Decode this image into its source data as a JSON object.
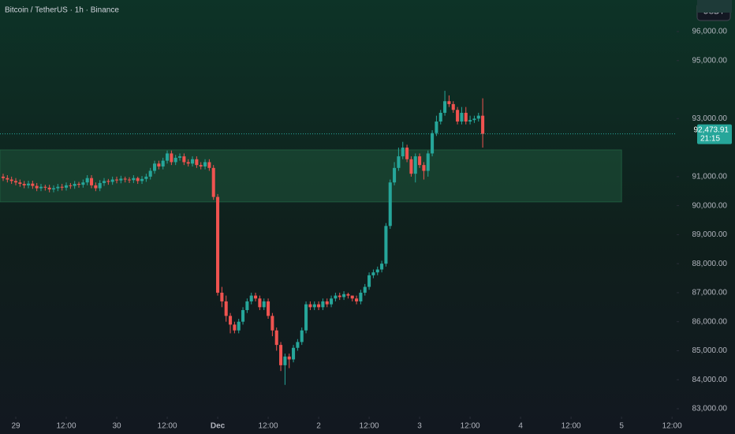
{
  "chart_data": {
    "type": "candlestick",
    "title": "Bitcoin / TetherUS · 1h · Binance",
    "currency": "USDT",
    "up_color": "#26a69a",
    "down_color": "#ef5350",
    "xlim": [
      -3.75,
      157.1
    ],
    "xticks": [
      {
        "value": 0,
        "label": "29"
      },
      {
        "value": 12,
        "label": "12:00"
      },
      {
        "value": 24,
        "label": "30"
      },
      {
        "value": 36,
        "label": "12:00"
      },
      {
        "value": 48,
        "label": "Dec"
      },
      {
        "value": 60,
        "label": "12:00"
      },
      {
        "value": 72,
        "label": "2"
      },
      {
        "value": 84,
        "label": "12:00"
      },
      {
        "value": 96,
        "label": "3"
      },
      {
        "value": 108,
        "label": "12:00"
      },
      {
        "value": 120,
        "label": "4"
      },
      {
        "value": 132,
        "label": "12:00"
      },
      {
        "value": 144,
        "label": "5"
      },
      {
        "value": 156,
        "label": "12:00"
      }
    ],
    "ylim": [
      82728,
      97088
    ],
    "yticks": [
      {
        "value": 83000,
        "label": "83,000.00"
      },
      {
        "value": 84000,
        "label": "84,000.00"
      },
      {
        "value": 85000,
        "label": "85,000.00"
      },
      {
        "value": 86000,
        "label": "86,000.00"
      },
      {
        "value": 87000,
        "label": "87,000.00"
      },
      {
        "value": 88000,
        "label": "88,000.00"
      },
      {
        "value": 89000,
        "label": "89,000.00"
      },
      {
        "value": 90000,
        "label": "90,000.00"
      },
      {
        "value": 91000,
        "label": "91,000.00"
      },
      {
        "value": 93000,
        "label": "93,000.00"
      },
      {
        "value": 95000,
        "label": "95,000.00"
      },
      {
        "value": 96000,
        "label": "96,000.00"
      }
    ],
    "zone": {
      "x": [
        -3.75,
        144
      ],
      "y": [
        90130,
        91920
      ],
      "color": "#1f5a3e"
    },
    "high": [
      91100,
      91050,
      91000,
      90950,
      90900,
      90850,
      90860,
      90860,
      90780,
      90750,
      90720,
      90720,
      90700,
      90750,
      90750,
      90800,
      90780,
      90850,
      90820,
      90900,
      91050,
      91050,
      90800,
      90880,
      90950,
      90920,
      91000,
      91000,
      91030,
      91000,
      90980,
      91050,
      91000,
      91020,
      91100,
      91300,
      91550,
      91550,
      91650,
      91900,
      91900,
      91750,
      91800,
      91800,
      91600,
      91700,
      91700,
      91500,
      91600,
      91600,
      91400,
      90400,
      87200,
      86900,
      86300,
      86000,
      86100,
      86500,
      86800,
      87000,
      87000,
      86900,
      86800,
      86800,
      86300,
      85800,
      85300,
      84900,
      84900,
      85200,
      85400,
      85800,
      86700,
      86700,
      86700,
      86700,
      86800,
      86800,
      86900,
      87000,
      87000,
      87050,
      87000,
      86900,
      86900,
      87100,
      87300,
      87700,
      87800,
      87900,
      88100,
      89400,
      90900,
      91500,
      92000,
      92200,
      92100,
      91700,
      91800,
      91800,
      91500,
      91900,
      92600,
      93100,
      93300,
      93958.58,
      93800,
      93600,
      93400,
      93400,
      93400,
      93100,
      93100,
      93200,
      93700
    ],
    "low": [
      90850,
      90800,
      90750,
      90700,
      90650,
      90600,
      90600,
      90580,
      90500,
      90500,
      90520,
      90460,
      90460,
      90500,
      90520,
      90520,
      90580,
      90580,
      90620,
      90620,
      90700,
      90600,
      90500,
      90500,
      90680,
      90720,
      90720,
      90770,
      90770,
      90800,
      90780,
      90780,
      90750,
      90750,
      90820,
      90900,
      91100,
      91250,
      91250,
      91450,
      91400,
      91400,
      91550,
      91400,
      91350,
      91350,
      91300,
      91250,
      91250,
      91200,
      90200,
      86900,
      86500,
      86000,
      85600,
      85600,
      85600,
      85900,
      86300,
      86600,
      86700,
      86400,
      86400,
      86100,
      85500,
      85000,
      84300,
      83822.76,
      84400,
      84600,
      85000,
      85200,
      85600,
      86400,
      86400,
      86400,
      86400,
      86500,
      86500,
      86700,
      86750,
      86750,
      86800,
      86700,
      86600,
      86600,
      86900,
      87100,
      87500,
      87600,
      87700,
      87900,
      89200,
      90700,
      91200,
      91600,
      91500,
      91000,
      90800,
      91300,
      90900,
      91000,
      91700,
      92400,
      92800,
      93100,
      93400,
      93200,
      92800,
      92800,
      92800,
      92800,
      92850,
      92900,
      92000
    ],
    "last": {
      "value": 92473.91,
      "value_label": "92,473.91",
      "countdown": "21:15"
    },
    "x": [
      -3,
      -2,
      -1,
      0,
      1,
      2,
      3,
      4,
      5,
      6,
      7,
      8,
      9,
      10,
      11,
      12,
      13,
      14,
      15,
      16,
      17,
      18,
      19,
      20,
      21,
      22,
      23,
      24,
      25,
      26,
      27,
      28,
      29,
      30,
      31,
      32,
      33,
      34,
      35,
      36,
      37,
      38,
      39,
      40,
      41,
      42,
      43,
      44,
      45,
      46,
      47,
      48,
      49,
      50,
      51,
      52,
      53,
      54,
      55,
      56,
      57,
      58,
      59,
      60,
      61,
      62,
      63,
      64,
      65,
      66,
      67,
      68,
      69,
      70,
      71,
      72,
      73,
      74,
      75,
      76,
      77,
      78,
      79,
      80,
      81,
      82,
      83,
      84,
      85,
      86,
      87,
      88,
      89,
      90,
      91,
      92,
      93,
      94,
      95,
      96,
      97,
      98,
      99,
      100,
      101,
      102,
      103,
      104,
      105,
      106,
      107,
      108,
      109,
      110,
      111
    ],
    "open": [
      91000,
      90950,
      90900,
      90850,
      90800,
      90750,
      90700,
      90760,
      90680,
      90600,
      90650,
      90620,
      90560,
      90600,
      90650,
      90620,
      90700,
      90680,
      90750,
      90720,
      90800,
      90950,
      90700,
      90600,
      90780,
      90850,
      90820,
      90900,
      90870,
      90930,
      90900,
      90880,
      90950,
      90850,
      90920,
      91000,
      91200,
      91450,
      91350,
      91550,
      91800,
      91500,
      91650,
      91700,
      91500,
      91450,
      91600,
      91400,
      91350,
      91500,
      91300,
      90300,
      87000,
      86700,
      86200,
      85900,
      85700,
      86000,
      86400,
      86700,
      86900,
      86800,
      86500,
      86700,
      86200,
      85700,
      85200,
      84500,
      84800,
      84700,
      85100,
      85300,
      85700,
      86600,
      86500,
      86600,
      86500,
      86700,
      86600,
      86800,
      86900,
      86850,
      86950,
      86900,
      86800,
      86700,
      87000,
      87200,
      87600,
      87700,
      87800,
      88000,
      89300,
      90800,
      91300,
      91700,
      92000,
      91600,
      91100,
      91700,
      91400,
      91200,
      91800,
      92500,
      92900,
      93200,
      93600,
      93500,
      93300,
      92900,
      93200,
      92900,
      92950,
      93000,
      93100
    ],
    "close": [
      90950,
      90900,
      90850,
      90800,
      90750,
      90700,
      90760,
      90680,
      90600,
      90650,
      90620,
      90560,
      90600,
      90650,
      90620,
      90700,
      90680,
      90750,
      90720,
      90800,
      90950,
      90700,
      90600,
      90780,
      90850,
      90820,
      90900,
      90870,
      90930,
      90900,
      90880,
      90950,
      90850,
      90920,
      91000,
      91200,
      91450,
      91350,
      91550,
      91800,
      91500,
      91650,
      91700,
      91500,
      91450,
      91600,
      91400,
      91350,
      91500,
      91300,
      90300,
      87000,
      86700,
      86200,
      85900,
      85700,
      86000,
      86400,
      86700,
      86900,
      86800,
      86500,
      86700,
      86200,
      85700,
      85200,
      84500,
      84800,
      84700,
      85100,
      85300,
      85700,
      86600,
      86500,
      86600,
      86500,
      86700,
      86600,
      86800,
      86900,
      86850,
      86950,
      86900,
      86800,
      86700,
      87000,
      87200,
      87600,
      87700,
      87800,
      88000,
      89300,
      90800,
      91300,
      91700,
      92000,
      91600,
      91100,
      91700,
      91400,
      91200,
      91800,
      92500,
      92900,
      93200,
      93600,
      93500,
      93300,
      92900,
      93200,
      92900,
      92950,
      93000,
      93100,
      92473.91
    ]
  }
}
